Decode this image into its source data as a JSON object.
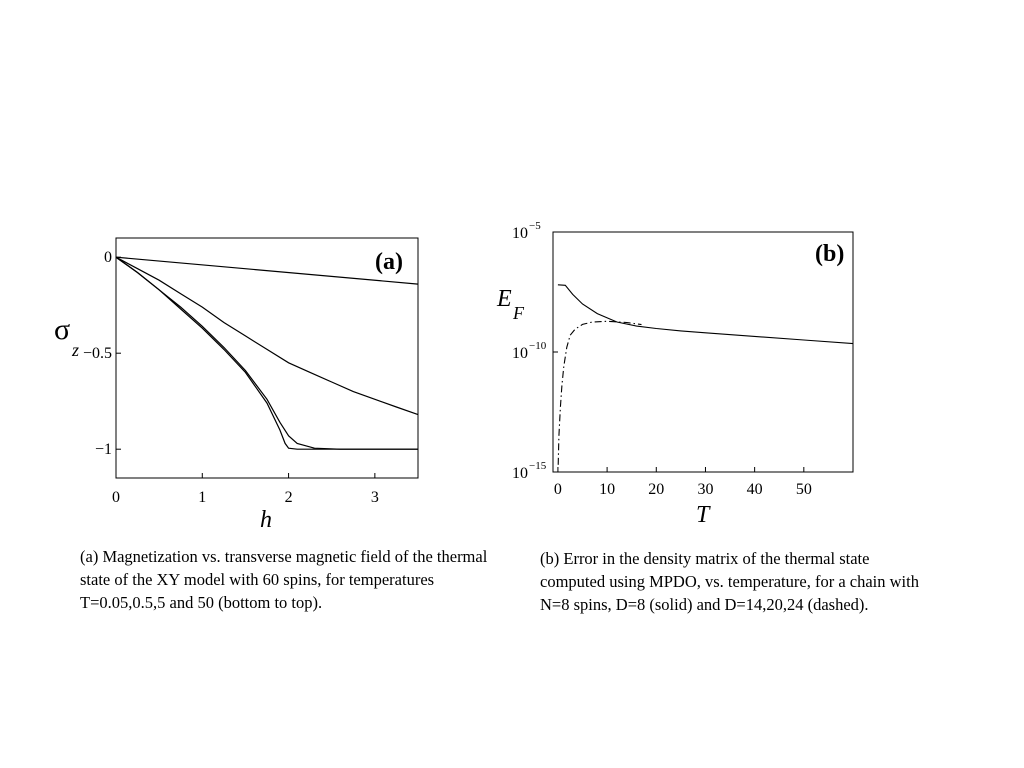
{
  "chart_data": [
    {
      "type": "line",
      "panel_label": "(a)",
      "ylabel": "σ",
      "ylabel_sub": "z",
      "xlabel": "h",
      "xlim": [
        0,
        3.5
      ],
      "ylim": [
        -1.15,
        0.1
      ],
      "x_ticks": [
        0,
        1,
        2,
        3
      ],
      "x_tick_labels": [
        "0",
        "1",
        "2",
        "3"
      ],
      "y_ticks": [
        0,
        -0.5,
        -1
      ],
      "y_tick_labels": [
        "0",
        "−0.5",
        "−1"
      ],
      "grid": false,
      "series": [
        {
          "x": [
            0,
            0.25,
            0.5,
            0.75,
            1.0,
            1.25,
            1.5,
            1.75,
            1.9,
            1.96,
            2.0,
            2.1,
            2.5,
            3.0,
            3.5
          ],
          "y": [
            0,
            -0.08,
            -0.17,
            -0.27,
            -0.37,
            -0.48,
            -0.6,
            -0.76,
            -0.9,
            -0.97,
            -0.995,
            -1.0,
            -1.0,
            -1.0,
            -1.0
          ]
        },
        {
          "x": [
            0,
            0.25,
            0.5,
            0.75,
            1.0,
            1.25,
            1.5,
            1.75,
            1.9,
            2.0,
            2.1,
            2.3,
            2.6,
            3.0,
            3.5
          ],
          "y": [
            0,
            -0.08,
            -0.17,
            -0.26,
            -0.36,
            -0.47,
            -0.59,
            -0.74,
            -0.86,
            -0.93,
            -0.97,
            -0.995,
            -1.0,
            -1.0,
            -1.0
          ]
        },
        {
          "x": [
            0,
            0.25,
            0.5,
            0.75,
            1.0,
            1.25,
            1.5,
            1.75,
            2.0,
            2.25,
            2.5,
            2.75,
            3.0,
            3.25,
            3.5
          ],
          "y": [
            0,
            -0.06,
            -0.12,
            -0.19,
            -0.26,
            -0.34,
            -0.41,
            -0.48,
            -0.55,
            -0.6,
            -0.65,
            -0.7,
            -0.74,
            -0.78,
            -0.82
          ]
        },
        {
          "x": [
            0,
            3.5
          ],
          "y": [
            0,
            -0.14
          ]
        }
      ]
    },
    {
      "type": "line",
      "panel_label": "(b)",
      "ylabel": "E",
      "ylabel_sub": "F",
      "xlabel": "T",
      "xlim": [
        -1,
        60
      ],
      "y_scale": "log",
      "ylim_exp": [
        -15,
        -5
      ],
      "x_ticks": [
        0,
        10,
        20,
        30,
        40,
        50
      ],
      "x_tick_labels": [
        "0",
        "10",
        "20",
        "30",
        "40",
        "50"
      ],
      "y_ticks_exp": [
        -5,
        -10,
        -15
      ],
      "y_tick_base": "10",
      "y_tick_exponents": [
        "−5",
        "−10",
        "−15"
      ],
      "grid": false,
      "series": [
        {
          "style": "solid",
          "x": [
            0,
            1.5,
            3,
            5,
            8,
            12,
            16,
            20,
            25,
            30,
            40,
            50,
            60
          ],
          "log10_y": [
            -7.2,
            -7.22,
            -7.6,
            -8.0,
            -8.4,
            -8.75,
            -8.92,
            -9.02,
            -9.12,
            -9.2,
            -9.35,
            -9.5,
            -9.65
          ]
        },
        {
          "style": "dashdot",
          "x": [
            0.05,
            0.2,
            0.5,
            0.8,
            1.2,
            1.8,
            2.5,
            3.5,
            5,
            7,
            10,
            14,
            17
          ],
          "log10_y": [
            -14.7,
            -13.5,
            -12.3,
            -11.4,
            -10.6,
            -9.8,
            -9.3,
            -9.05,
            -8.85,
            -8.75,
            -8.72,
            -8.77,
            -8.86
          ]
        }
      ]
    }
  ],
  "captions": {
    "a": "(a) Magnetization vs.  transverse magnetic field of the thermal state of the XY model with 60 spins, for temperatures T=0.05,0.5,5 and 50 (bottom to top).",
    "b": "(b) Error in the density matrix of the thermal state computed using MPDO, vs. temperature, for a chain with N=8 spins, D=8 (solid) and D=14,20,24 (dashed)."
  }
}
